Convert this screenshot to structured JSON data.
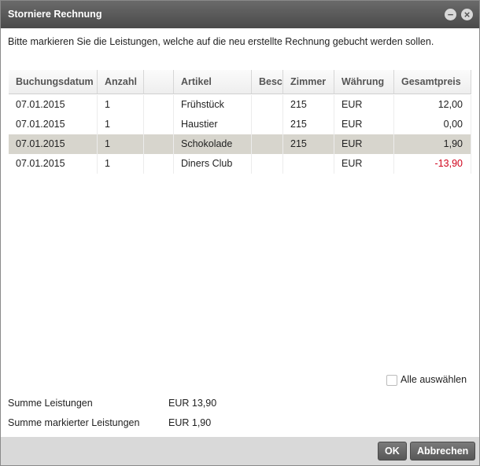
{
  "dialog": {
    "title": "Storniere Rechnung",
    "instruction": "Bitte markieren Sie die Leistungen, welche auf die neu erstellte Rechnung gebucht werden sollen.",
    "table": {
      "headers": [
        "Buchungsdatum",
        "Anzahl",
        "Artikel",
        "Besc",
        "Zimmer",
        "Währung",
        "Gesamtpreis"
      ],
      "selected_row": 2,
      "rows": [
        {
          "date": "07.01.2015",
          "qty": "1",
          "article": "Frühstück",
          "room": "215",
          "currency": "EUR",
          "total": "12,00"
        },
        {
          "date": "07.01.2015",
          "qty": "1",
          "article": "Haustier",
          "room": "215",
          "currency": "EUR",
          "total": "0,00"
        },
        {
          "date": "07.01.2015",
          "qty": "1",
          "article": "Schokolade",
          "room": "215",
          "currency": "EUR",
          "total": "1,90"
        },
        {
          "date": "07.01.2015",
          "qty": "1",
          "article": "Diners Club",
          "currency": "EUR",
          "total": "-13,90"
        }
      ]
    },
    "select_all": "Alle auswählen",
    "summary": [
      {
        "label": "Summe Leistungen",
        "value": "EUR 13,90"
      },
      {
        "label": "Summe markierter Leistungen",
        "value": "EUR 1,90"
      }
    ],
    "buttons": {
      "ok": "OK",
      "cancel": "Abbrechen"
    }
  }
}
